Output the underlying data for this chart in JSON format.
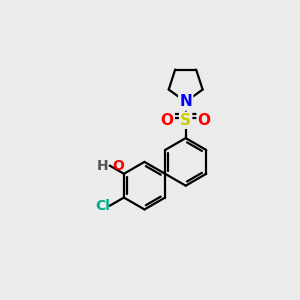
{
  "background_color": "#ebebeb",
  "bond_color": "#000000",
  "atom_colors": {
    "N": "#0000ff",
    "O": "#ff0000",
    "S": "#cccc00",
    "Cl": "#00aa88",
    "HO_O": "#ff0000",
    "HO_H": "#555555"
  },
  "line_width": 1.6,
  "figsize": [
    3.0,
    3.0
  ],
  "dpi": 100
}
